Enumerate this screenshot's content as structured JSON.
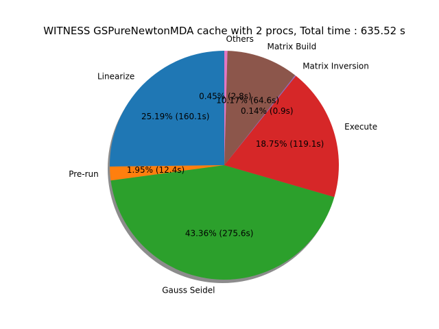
{
  "chart_data": {
    "type": "pie",
    "title": "WITNESS GSPureNewtonMDA cache with 2 procs, Total time : 635.52 s",
    "shadow": true,
    "start_angle_deg": 90,
    "direction": "counterclockwise",
    "slices": [
      {
        "label": "Linearize",
        "value": 160.1,
        "pct_text": "25.19%  (160.1s)",
        "color": "#1f77b4"
      },
      {
        "label": "Pre-run",
        "value": 12.4,
        "pct_text": "1.95%  (12.4s)",
        "color": "#ff7f0e"
      },
      {
        "label": "Gauss Seidel",
        "value": 275.6,
        "pct_text": "43.36%  (275.6s)",
        "color": "#2ca02c"
      },
      {
        "label": "Execute",
        "value": 119.1,
        "pct_text": "18.75%  (119.1s)",
        "color": "#d62728"
      },
      {
        "label": "Matrix Inversion",
        "value": 0.9,
        "pct_text": "0.14%  (0.9s)",
        "color": "#9467bd"
      },
      {
        "label": "Matrix Build",
        "value": 64.6,
        "pct_text": "10.17%  (64.6s)",
        "color": "#8c564b"
      },
      {
        "label": "Others",
        "value": 2.8,
        "pct_text": "0.45%  (2.8s)",
        "color": "#e377c2"
      }
    ]
  }
}
